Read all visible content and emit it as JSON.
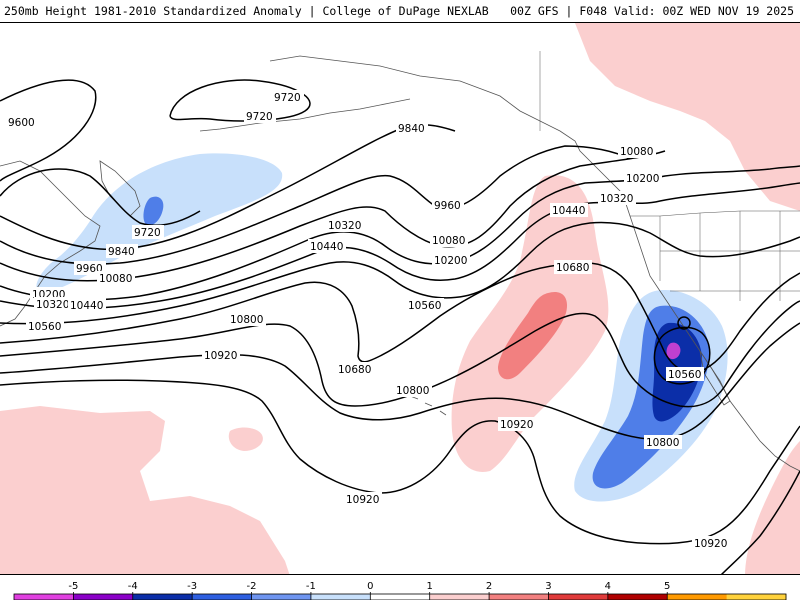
{
  "header": {
    "left_title": "250mb Height 1981-2010 Standardized Anomaly | College of DuPage NEXLAB",
    "right_title": "00Z GFS | F048 Valid: 00Z WED NOV 19 2025"
  },
  "contour_labels": [
    "9600",
    "9720",
    "9720",
    "9720",
    "9840",
    "9840",
    "9960",
    "9960",
    "10080",
    "10080",
    "10080",
    "10200",
    "10200",
    "10200",
    "10320",
    "10320",
    "10320",
    "10440",
    "10440",
    "10440",
    "10560",
    "10560",
    "10560",
    "10680",
    "10680",
    "10800",
    "10800",
    "10800",
    "10920",
    "10920",
    "10920",
    "10920"
  ],
  "colorbar": {
    "ticks": [
      "-5",
      "-4",
      "-3",
      "-2",
      "-1",
      "0",
      "1",
      "2",
      "3",
      "4",
      "5"
    ],
    "colors": [
      "#e040e0",
      "#8b00c8",
      "#0b2ea8",
      "#2e5fe0",
      "#6f95f0",
      "#c8e0fb",
      "#ffffff",
      "#fbcfcf",
      "#f28080",
      "#e03b3b",
      "#b00000",
      "#ff9a00",
      "#ffd23c"
    ]
  },
  "colors": {
    "anomaly_neg_1": "#c8e0fb",
    "anomaly_neg_2": "#4f7ee8",
    "anomaly_neg_3": "#0b2ea8",
    "anomaly_neg_5": "#c040d0",
    "anomaly_pos_1": "#fbcfcf",
    "anomaly_pos_2": "#f28080",
    "contour": "#000000",
    "coastline": "#555555"
  }
}
